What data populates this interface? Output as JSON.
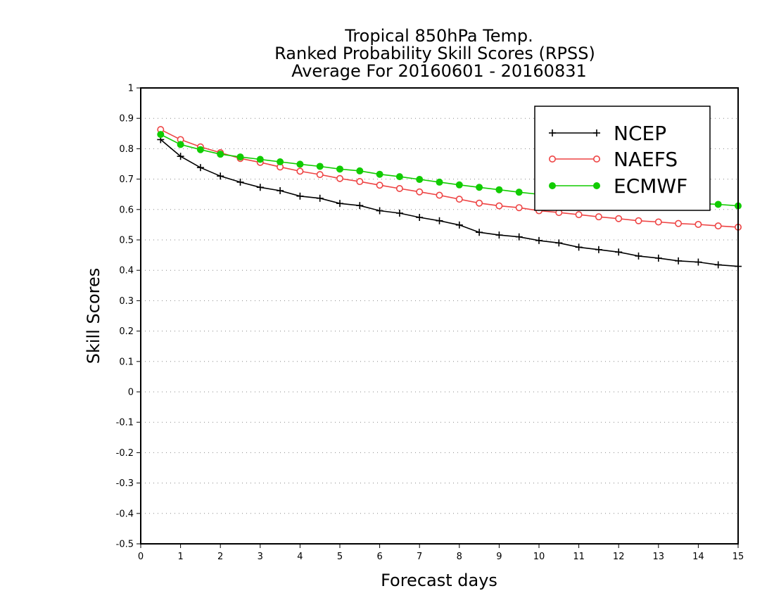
{
  "chart_data": {
    "type": "line",
    "title_lines": [
      "Tropical 850hPa Temp.",
      "Ranked Probability Skill Scores (RPSS)",
      "Average For 20160601 - 20160831"
    ],
    "xlabel": "Forecast days",
    "ylabel": "Skill Scores",
    "xlim": [
      0,
      15
    ],
    "ylim": [
      -0.5,
      1
    ],
    "x_ticks": [
      0,
      1,
      2,
      3,
      4,
      5,
      6,
      7,
      8,
      9,
      10,
      11,
      12,
      13,
      14,
      15
    ],
    "y_ticks": [
      -0.5,
      -0.4,
      -0.3,
      -0.2,
      -0.1,
      0,
      0.1,
      0.2,
      0.3,
      0.4,
      0.5,
      0.6,
      0.7,
      0.8,
      0.9,
      1
    ],
    "y_tick_labels": [
      "-0.5",
      "-0.4",
      "-0.3",
      "-0.2",
      "-0.1",
      "0",
      "0.1",
      "0.2",
      "0.3",
      "0.4",
      "0.5",
      "0.6",
      "0.7",
      "0.8",
      "0.9",
      "1"
    ],
    "grid": "horizontal dotted",
    "legend_position": "top-right",
    "x": [
      0.5,
      1,
      1.5,
      2,
      2.5,
      3,
      3.5,
      4,
      4.5,
      5,
      5.5,
      6,
      6.5,
      7,
      7.5,
      8,
      8.5,
      9,
      9.5,
      10,
      10.5,
      11,
      11.5,
      12,
      12.5,
      13,
      13.5,
      14,
      14.5,
      15
    ],
    "series": [
      {
        "name": "NCEP",
        "color": "#000000",
        "marker": "plus",
        "values": [
          0.83,
          0.775,
          0.738,
          0.71,
          0.69,
          0.673,
          0.662,
          0.644,
          0.637,
          0.62,
          0.613,
          0.596,
          0.588,
          0.574,
          0.563,
          0.549,
          0.525,
          0.516,
          0.51,
          0.498,
          0.49,
          0.476,
          0.468,
          0.46,
          0.447,
          0.44,
          0.431,
          0.427,
          0.418,
          0.413
        ]
      },
      {
        "name": "NAEFS",
        "color": "#ee4444",
        "marker": "open-circle",
        "values": [
          0.863,
          0.83,
          0.806,
          0.787,
          0.768,
          0.755,
          0.74,
          0.726,
          0.715,
          0.702,
          0.692,
          0.68,
          0.669,
          0.658,
          0.647,
          0.634,
          0.621,
          0.612,
          0.606,
          0.596,
          0.59,
          0.583,
          0.576,
          0.57,
          0.563,
          0.559,
          0.554,
          0.551,
          0.546,
          0.542
        ]
      },
      {
        "name": "ECMWF",
        "color": "#11cc00",
        "marker": "filled-circle",
        "values": [
          0.847,
          0.814,
          0.797,
          0.782,
          0.773,
          0.765,
          0.757,
          0.749,
          0.742,
          0.733,
          0.727,
          0.716,
          0.708,
          0.699,
          0.69,
          0.681,
          0.673,
          0.665,
          0.657,
          0.65,
          0.645,
          0.64,
          0.637,
          0.634,
          0.631,
          0.628,
          0.624,
          0.62,
          0.617,
          0.612
        ]
      }
    ]
  }
}
